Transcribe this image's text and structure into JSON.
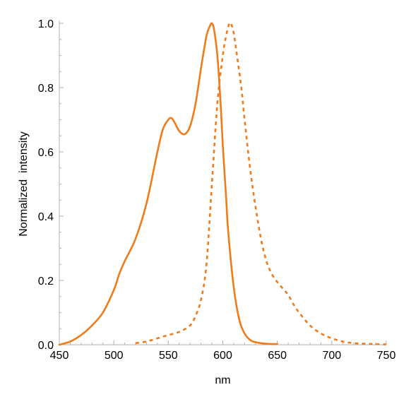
{
  "chart_data": {
    "type": "line",
    "title": "",
    "xlabel": "nm",
    "ylabel": "Normalized  intensity",
    "xlim": [
      450,
      750
    ],
    "ylim": [
      0,
      1.0
    ],
    "x_ticks": [
      450,
      500,
      550,
      600,
      650,
      700,
      750
    ],
    "x_tick_labels": [
      "450",
      "500",
      "550",
      "600",
      "650",
      "700",
      "750"
    ],
    "y_ticks": [
      0,
      0.2,
      0.4,
      0.6,
      0.8,
      1.0
    ],
    "y_tick_labels": [
      "0.0",
      "0.2",
      "0.4",
      "0.6",
      "0.8",
      "1.0"
    ],
    "grid": false,
    "legend": "none",
    "series": [
      {
        "style": "solid",
        "color": "#f07b1a",
        "x": [
          450,
          460,
          470,
          480,
          490,
          500,
          505,
          510,
          520,
          530,
          540,
          545,
          550,
          553,
          556,
          560,
          565,
          570,
          575,
          580,
          585,
          588,
          590,
          592,
          595,
          598,
          600,
          603,
          605,
          610,
          615,
          620,
          625,
          630,
          640,
          650
        ],
        "y": [
          0.0,
          0.01,
          0.03,
          0.06,
          0.1,
          0.17,
          0.22,
          0.26,
          0.33,
          0.44,
          0.6,
          0.67,
          0.7,
          0.705,
          0.69,
          0.665,
          0.655,
          0.68,
          0.75,
          0.86,
          0.96,
          0.99,
          1.0,
          0.98,
          0.9,
          0.75,
          0.62,
          0.46,
          0.35,
          0.18,
          0.08,
          0.035,
          0.015,
          0.008,
          0.003,
          0.002
        ]
      },
      {
        "style": "dashed",
        "color": "#f07b1a",
        "x": [
          520,
          530,
          540,
          550,
          560,
          570,
          575,
          580,
          585,
          590,
          595,
          600,
          603,
          606,
          608,
          610,
          613,
          617,
          620,
          625,
          630,
          635,
          640,
          645,
          650,
          655,
          660,
          665,
          670,
          680,
          690,
          700,
          710,
          720,
          730,
          740,
          750
        ],
        "y": [
          0.005,
          0.01,
          0.02,
          0.03,
          0.04,
          0.06,
          0.09,
          0.14,
          0.25,
          0.5,
          0.75,
          0.9,
          0.96,
          1.0,
          0.995,
          0.97,
          0.9,
          0.8,
          0.7,
          0.55,
          0.43,
          0.33,
          0.26,
          0.22,
          0.195,
          0.175,
          0.155,
          0.125,
          0.1,
          0.06,
          0.035,
          0.02,
          0.01,
          0.005,
          0.003,
          0.002,
          0.001
        ]
      }
    ]
  }
}
